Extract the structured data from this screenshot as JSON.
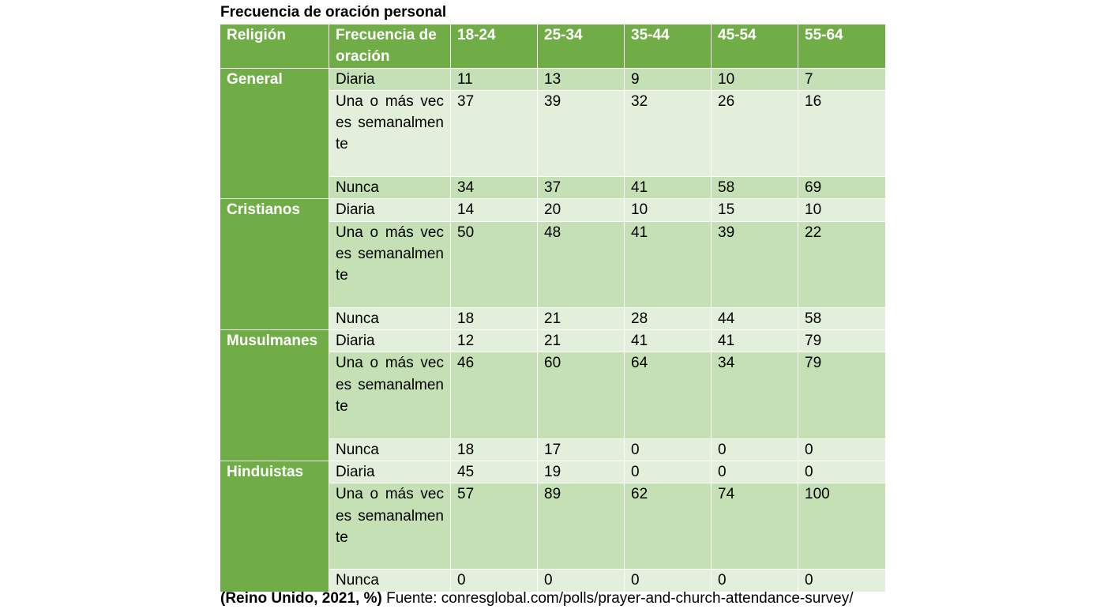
{
  "title": "Frecuencia de oración personal",
  "headers": [
    "Religión",
    "Frecuencia de oración",
    "18-24",
    "25-34",
    "35-44",
    "45-54",
    "55-64"
  ],
  "freq_labels": {
    "daily": "Diaria",
    "weekly": "Una o más veces semanalmente",
    "never": "Nunca"
  },
  "groups": [
    {
      "name": "General",
      "daily": [
        "11",
        "13",
        "9",
        "10",
        "7"
      ],
      "weekly": [
        "37",
        "39",
        "32",
        "26",
        "16"
      ],
      "never": [
        "34",
        "37",
        "41",
        "58",
        "69"
      ]
    },
    {
      "name": "Cristianos",
      "daily": [
        "14",
        "20",
        "10",
        "15",
        "10"
      ],
      "weekly": [
        "50",
        "48",
        "41",
        "39",
        "22"
      ],
      "never": [
        "18",
        "21",
        "28",
        "44",
        "58"
      ]
    },
    {
      "name": "Musulmanes",
      "daily": [
        "12",
        "21",
        "41",
        "41",
        "79"
      ],
      "weekly": [
        "46",
        "60",
        "64",
        "34",
        "79"
      ],
      "never": [
        "18",
        "17",
        "0",
        "0",
        "0"
      ]
    },
    {
      "name": "Hinduistas",
      "daily": [
        "45",
        "19",
        "0",
        "0",
        "0"
      ],
      "weekly": [
        "57",
        "89",
        "62",
        "74",
        "100"
      ],
      "never": [
        "0",
        "0",
        "0",
        "0",
        "0"
      ]
    }
  ],
  "footer": {
    "bold": "(Reino Unido, 2021, %)",
    "text": " Fuente: conresglobal.com/polls/prayer-and-church-attendance-survey/"
  }
}
